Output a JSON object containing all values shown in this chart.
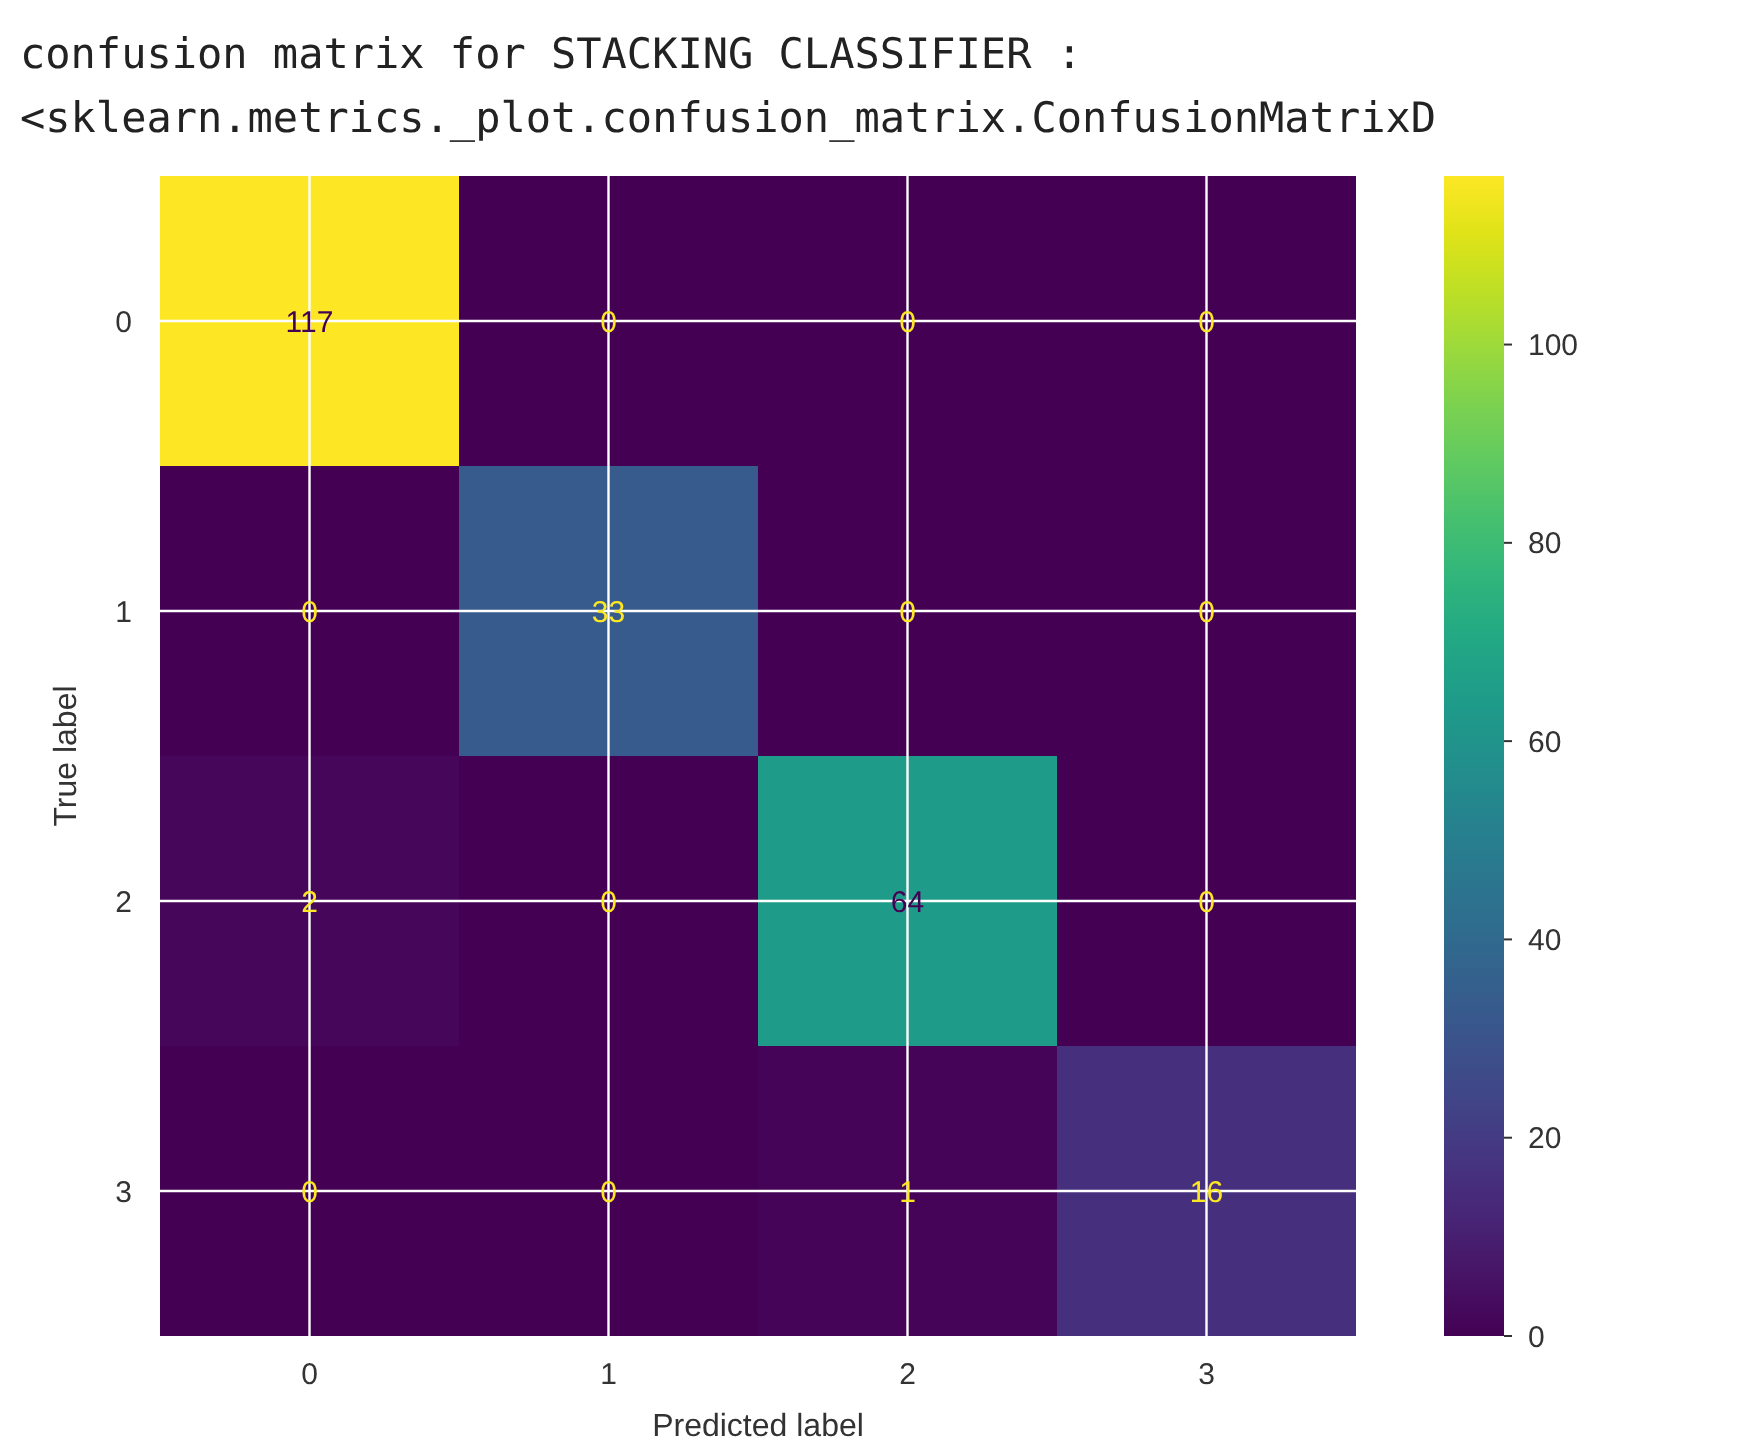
{
  "chart_data": {
    "type": "heatmap",
    "title": "confusion matrix for STACKING CLASSIFIER :",
    "subtitle": "<sklearn.metrics._plot.confusion_matrix.ConfusionMatrixD",
    "xlabel": "Predicted label",
    "ylabel": "True label",
    "categories": [
      "0",
      "1",
      "2",
      "3"
    ],
    "y_categories": [
      "0",
      "1",
      "2",
      "3"
    ],
    "cells": [
      [
        117,
        0,
        0,
        0
      ],
      [
        0,
        33,
        0,
        0
      ],
      [
        2,
        0,
        64,
        0
      ],
      [
        0,
        0,
        1,
        16
      ]
    ],
    "clim": [
      0,
      117
    ],
    "cticks": [
      0,
      20,
      40,
      60,
      80,
      100
    ],
    "grid": true,
    "data_labels": true
  }
}
